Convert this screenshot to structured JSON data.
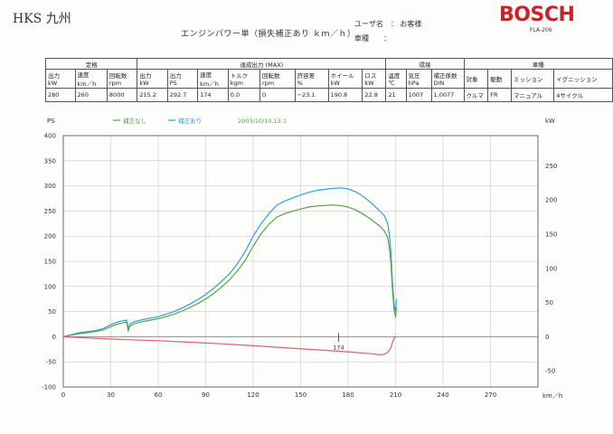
{
  "header": {
    "shop": "HKS 九州",
    "title": "エンジンパワー単（損失補正あり ｋｍ／ｈ）",
    "user_label": "ユーザ名　：",
    "user_value": "お客様",
    "car_label": "車種　　：",
    "brand": "BOSCH",
    "model": "FLA-206"
  },
  "spec_table": {
    "groups": [
      "定格",
      "達成出力 (MAX)",
      "環境",
      "車種"
    ],
    "headers": [
      [
        "出力",
        "kW"
      ],
      [
        "速度",
        "km／h"
      ],
      [
        "回転数",
        "rpm"
      ],
      [
        "出力",
        "kW"
      ],
      [
        "出力",
        "PS"
      ],
      [
        "速度",
        "km／h"
      ],
      [
        "トルク",
        "kgm"
      ],
      [
        "回転数",
        "rpm"
      ],
      [
        "許容差",
        "%"
      ],
      [
        "ホイール",
        "kW"
      ],
      [
        "ロス",
        "kW"
      ],
      [
        "温度",
        "℃"
      ],
      [
        "気圧",
        "hPa"
      ],
      [
        "補正係数",
        "DIN"
      ],
      [
        "対象",
        ""
      ],
      [
        "駆動",
        ""
      ],
      [
        "ミッション",
        ""
      ],
      [
        "イグニッション",
        ""
      ]
    ],
    "values": [
      "280",
      "260",
      "8000",
      "215.2",
      "292.7",
      "174",
      "0.0",
      "0",
      "−23.1",
      "190.8",
      "22.8",
      "21",
      "1007",
      "1.0077",
      "クルマ",
      "FR",
      "マニュアル",
      "4サイクル"
    ]
  },
  "legend": {
    "items": [
      {
        "label": "補正なし",
        "color": "#5aa04a"
      },
      {
        "label": "補正あり",
        "color": "#2aa2d8"
      }
    ],
    "timestamp": "2003/10/10,13:1"
  },
  "chart_data": {
    "type": "line",
    "title": "",
    "xlabel": "km／h",
    "ylabel_left": "PS",
    "ylabel_right": "kW",
    "xlim": [
      0,
      300
    ],
    "ylim_left": [
      -100,
      400
    ],
    "ylim_right": [
      -73.5,
      294
    ],
    "x_ticks": [
      0,
      30,
      60,
      90,
      120,
      150,
      180,
      210,
      240,
      270
    ],
    "y_ticks_left": [
      -100,
      -50,
      0,
      50,
      100,
      150,
      200,
      250,
      300,
      350,
      400
    ],
    "y_ticks_right": [
      -50,
      0,
      50,
      100,
      150,
      200,
      250
    ],
    "grid": true,
    "marker": {
      "x": 174,
      "label": "174"
    },
    "series": [
      {
        "name": "補正あり",
        "color": "#2aa2d8",
        "points": [
          [
            0,
            0
          ],
          [
            5,
            4
          ],
          [
            10,
            8
          ],
          [
            15,
            10
          ],
          [
            20,
            12
          ],
          [
            25,
            16
          ],
          [
            30,
            24
          ],
          [
            35,
            30
          ],
          [
            38,
            32
          ],
          [
            40,
            33
          ],
          [
            41,
            15
          ],
          [
            42,
            25
          ],
          [
            45,
            30
          ],
          [
            50,
            34
          ],
          [
            55,
            37
          ],
          [
            60,
            40
          ],
          [
            65,
            45
          ],
          [
            70,
            50
          ],
          [
            75,
            57
          ],
          [
            80,
            65
          ],
          [
            85,
            74
          ],
          [
            90,
            84
          ],
          [
            95,
            96
          ],
          [
            100,
            110
          ],
          [
            105,
            125
          ],
          [
            110,
            145
          ],
          [
            115,
            170
          ],
          [
            120,
            200
          ],
          [
            125,
            225
          ],
          [
            130,
            245
          ],
          [
            135,
            262
          ],
          [
            140,
            270
          ],
          [
            145,
            276
          ],
          [
            150,
            282
          ],
          [
            155,
            287
          ],
          [
            160,
            291
          ],
          [
            165,
            293
          ],
          [
            170,
            295
          ],
          [
            175,
            296
          ],
          [
            180,
            294
          ],
          [
            185,
            288
          ],
          [
            190,
            278
          ],
          [
            195,
            265
          ],
          [
            200,
            250
          ],
          [
            203,
            240
          ],
          [
            205,
            225
          ],
          [
            206,
            205
          ],
          [
            207,
            170
          ],
          [
            208,
            110
          ],
          [
            209,
            65
          ],
          [
            210,
            50
          ],
          [
            210.5,
            75
          ]
        ]
      },
      {
        "name": "補正なし",
        "color": "#5aa04a",
        "points": [
          [
            0,
            0
          ],
          [
            5,
            3
          ],
          [
            10,
            6
          ],
          [
            15,
            8
          ],
          [
            20,
            10
          ],
          [
            25,
            13
          ],
          [
            30,
            20
          ],
          [
            35,
            26
          ],
          [
            38,
            28
          ],
          [
            40,
            29
          ],
          [
            41,
            12
          ],
          [
            42,
            21
          ],
          [
            45,
            26
          ],
          [
            50,
            30
          ],
          [
            55,
            33
          ],
          [
            60,
            36
          ],
          [
            65,
            40
          ],
          [
            70,
            45
          ],
          [
            75,
            51
          ],
          [
            80,
            58
          ],
          [
            85,
            66
          ],
          [
            90,
            75
          ],
          [
            95,
            86
          ],
          [
            100,
            99
          ],
          [
            105,
            113
          ],
          [
            110,
            131
          ],
          [
            115,
            152
          ],
          [
            120,
            180
          ],
          [
            125,
            205
          ],
          [
            130,
            224
          ],
          [
            135,
            238
          ],
          [
            140,
            245
          ],
          [
            145,
            250
          ],
          [
            150,
            254
          ],
          [
            155,
            258
          ],
          [
            160,
            260
          ],
          [
            165,
            261
          ],
          [
            170,
            262
          ],
          [
            175,
            261
          ],
          [
            180,
            258
          ],
          [
            185,
            252
          ],
          [
            190,
            243
          ],
          [
            195,
            232
          ],
          [
            200,
            220
          ],
          [
            203,
            210
          ],
          [
            205,
            197
          ],
          [
            206,
            178
          ],
          [
            207,
            148
          ],
          [
            208,
            95
          ],
          [
            209,
            55
          ],
          [
            210,
            38
          ],
          [
            210.5,
            58
          ]
        ]
      },
      {
        "name": "",
        "color": "#e05d79",
        "points": [
          [
            0,
            0
          ],
          [
            20,
            -3
          ],
          [
            40,
            -6
          ],
          [
            60,
            -8
          ],
          [
            80,
            -11
          ],
          [
            100,
            -14
          ],
          [
            120,
            -18
          ],
          [
            140,
            -22
          ],
          [
            160,
            -26
          ],
          [
            180,
            -30
          ],
          [
            195,
            -34
          ],
          [
            200,
            -36
          ],
          [
            203,
            -35
          ],
          [
            205,
            -31
          ],
          [
            207,
            -22
          ],
          [
            208,
            -12
          ],
          [
            209,
            -3
          ],
          [
            210,
            0
          ]
        ]
      }
    ]
  }
}
